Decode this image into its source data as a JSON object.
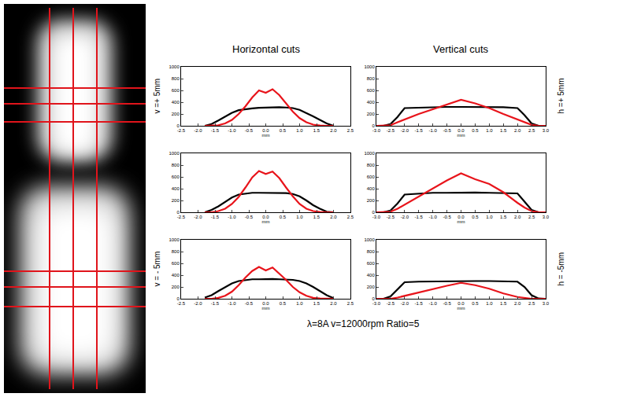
{
  "chart_data": [
    {
      "type": "line",
      "x_label": "mm",
      "xlim": [
        -2.5,
        2.5
      ],
      "xticks": [
        -2.5,
        {
          "value": -2,
          "label": "-2.0"
        },
        -1.5,
        {
          "value": -1,
          "label": "-1.0"
        },
        -0.5,
        {
          "value": 0,
          "label": "0.0"
        },
        0.5,
        {
          "value": 1,
          "label": "1.0"
        },
        1.5,
        {
          "value": 2,
          "label": "2.0"
        },
        2.5
      ],
      "ylim": [
        0,
        1000
      ],
      "yticks": [
        0,
        200,
        400,
        600,
        800,
        1000
      ],
      "grid": false,
      "x": [
        -1.8,
        -1.6,
        -1.4,
        -1.2,
        -1.0,
        -0.8,
        -0.6,
        -0.4,
        -0.2,
        0,
        0.2,
        0.4,
        0.6,
        0.8,
        1.0,
        1.2,
        1.4,
        1.6,
        1.8,
        2.0
      ],
      "series": [
        {
          "color": "#000000",
          "values": [
            0,
            30,
            90,
            160,
            220,
            265,
            285,
            295,
            305,
            310,
            315,
            315,
            310,
            300,
            270,
            220,
            160,
            100,
            40,
            0
          ]
        },
        {
          "color": "#e8141b",
          "values": [
            0,
            0,
            10,
            40,
            100,
            200,
            330,
            480,
            600,
            560,
            620,
            520,
            380,
            240,
            130,
            60,
            20,
            5,
            0,
            0
          ]
        }
      ]
    },
    {
      "type": "line",
      "x_label": "mm",
      "xlim": [
        -3,
        3
      ],
      "xticks": [
        {
          "value": -3,
          "label": "-3.0"
        },
        -2.5,
        {
          "value": -2,
          "label": "-2.0"
        },
        -1.5,
        {
          "value": -1,
          "label": "-1.0"
        },
        -0.5,
        {
          "value": 0,
          "label": "0.0"
        },
        0.5,
        {
          "value": 1,
          "label": "1.0"
        },
        1.5,
        {
          "value": 2,
          "label": "2.0"
        },
        2.5,
        {
          "value": 3,
          "label": "3.0"
        }
      ],
      "ylim": [
        0,
        1000
      ],
      "yticks": [
        0,
        200,
        400,
        600,
        800,
        1000
      ],
      "grid": false,
      "x": [
        -3,
        -2.75,
        -2.5,
        -2.25,
        -2,
        -1.5,
        -1,
        -0.5,
        0,
        0.5,
        1,
        1.5,
        2,
        2.25,
        2.5,
        2.75,
        3
      ],
      "series": [
        {
          "color": "#000000",
          "values": [
            0,
            0,
            30,
            150,
            300,
            310,
            315,
            320,
            320,
            320,
            320,
            315,
            300,
            180,
            40,
            0,
            0
          ]
        },
        {
          "color": "#e8141b",
          "values": [
            0,
            0,
            10,
            60,
            110,
            200,
            280,
            360,
            440,
            380,
            300,
            200,
            110,
            60,
            15,
            0,
            0
          ]
        }
      ]
    },
    {
      "type": "line",
      "x_label": "mm",
      "xlim": [
        -2.5,
        2.5
      ],
      "xticks": [
        -2.5,
        {
          "value": -2,
          "label": "-2.0"
        },
        -1.5,
        {
          "value": -1,
          "label": "-1.0"
        },
        -0.5,
        {
          "value": 0,
          "label": "0.0"
        },
        0.5,
        {
          "value": 1,
          "label": "1.0"
        },
        1.5,
        {
          "value": 2,
          "label": "2.0"
        },
        2.5
      ],
      "ylim": [
        0,
        1000
      ],
      "yticks": [
        0,
        200,
        400,
        600,
        800,
        1000
      ],
      "grid": false,
      "x": [
        -1.8,
        -1.6,
        -1.4,
        -1.2,
        -1.0,
        -0.8,
        -0.6,
        -0.4,
        -0.2,
        0,
        0.2,
        0.4,
        0.6,
        0.8,
        1.0,
        1.2,
        1.4,
        1.6,
        1.8,
        2.0
      ],
      "series": [
        {
          "color": "#000000",
          "values": [
            0,
            40,
            100,
            180,
            250,
            300,
            320,
            330,
            330,
            330,
            330,
            330,
            325,
            310,
            270,
            200,
            120,
            60,
            10,
            0
          ]
        },
        {
          "color": "#e8141b",
          "values": [
            0,
            0,
            20,
            60,
            140,
            260,
            420,
            590,
            700,
            650,
            690,
            580,
            420,
            270,
            140,
            60,
            20,
            5,
            0,
            0
          ]
        }
      ]
    },
    {
      "type": "line",
      "x_label": "mm",
      "xlim": [
        -3,
        3
      ],
      "xticks": [
        {
          "value": -3,
          "label": "-3.0"
        },
        -2.5,
        {
          "value": -2,
          "label": "-2.0"
        },
        -1.5,
        {
          "value": -1,
          "label": "-1.0"
        },
        -0.5,
        {
          "value": 0,
          "label": "0.0"
        },
        0.5,
        {
          "value": 1,
          "label": "1.0"
        },
        1.5,
        {
          "value": 2,
          "label": "2.0"
        },
        2.5,
        {
          "value": 3,
          "label": "3.0"
        }
      ],
      "ylim": [
        0,
        1000
      ],
      "yticks": [
        0,
        200,
        400,
        600,
        800,
        1000
      ],
      "grid": false,
      "x": [
        -3,
        -2.75,
        -2.5,
        -2.25,
        -2,
        -1.5,
        -1,
        -0.5,
        0,
        0.5,
        1,
        1.5,
        2,
        2.25,
        2.5,
        2.75,
        3
      ],
      "series": [
        {
          "color": "#000000",
          "values": [
            0,
            0,
            30,
            150,
            300,
            320,
            330,
            330,
            335,
            335,
            330,
            330,
            320,
            180,
            40,
            0,
            0
          ]
        },
        {
          "color": "#e8141b",
          "values": [
            0,
            0,
            10,
            60,
            130,
            260,
            400,
            540,
            660,
            560,
            480,
            340,
            160,
            80,
            20,
            0,
            0
          ]
        }
      ]
    },
    {
      "type": "line",
      "x_label": "mm",
      "xlim": [
        -2.5,
        2.5
      ],
      "xticks": [
        -2.5,
        {
          "value": -2,
          "label": "-2.0"
        },
        -1.5,
        {
          "value": -1,
          "label": "-1.0"
        },
        -0.5,
        {
          "value": 0,
          "label": "0.0"
        },
        0.5,
        {
          "value": 1,
          "label": "1.0"
        },
        1.5,
        {
          "value": 2,
          "label": "2.0"
        },
        2.5
      ],
      "ylim": [
        0,
        1000
      ],
      "yticks": [
        0,
        200,
        400,
        600,
        800,
        1000
      ],
      "grid": false,
      "x": [
        -1.8,
        -1.6,
        -1.4,
        -1.2,
        -1.0,
        -0.8,
        -0.6,
        -0.4,
        -0.2,
        0,
        0.2,
        0.4,
        0.6,
        0.8,
        1.0,
        1.2,
        1.4,
        1.6,
        1.8,
        2.0
      ],
      "series": [
        {
          "color": "#000000",
          "values": [
            20,
            60,
            130,
            200,
            260,
            300,
            320,
            330,
            330,
            335,
            335,
            330,
            325,
            320,
            300,
            260,
            200,
            130,
            60,
            10
          ]
        },
        {
          "color": "#e8141b",
          "values": [
            0,
            0,
            15,
            50,
            120,
            230,
            360,
            470,
            540,
            480,
            530,
            430,
            320,
            200,
            110,
            50,
            15,
            5,
            0,
            0
          ]
        }
      ]
    },
    {
      "type": "line",
      "x_label": "mm",
      "xlim": [
        -3,
        3
      ],
      "xticks": [
        {
          "value": -3,
          "label": "-3.0"
        },
        -2.5,
        {
          "value": -2,
          "label": "-2.0"
        },
        -1.5,
        {
          "value": -1,
          "label": "-1.0"
        },
        -0.5,
        {
          "value": 0,
          "label": "0.0"
        },
        0.5,
        {
          "value": 1,
          "label": "1.0"
        },
        1.5,
        {
          "value": 2,
          "label": "2.0"
        },
        2.5,
        {
          "value": 3,
          "label": "3.0"
        }
      ],
      "ylim": [
        0,
        1000
      ],
      "yticks": [
        0,
        200,
        400,
        600,
        800,
        1000
      ],
      "grid": false,
      "x": [
        -3,
        -2.75,
        -2.5,
        -2.25,
        -2,
        -1.5,
        -1,
        -0.5,
        0,
        0.5,
        1,
        1.5,
        2,
        2.25,
        2.5,
        2.75,
        3
      ],
      "series": [
        {
          "color": "#000000",
          "values": [
            0,
            0,
            40,
            160,
            280,
            290,
            295,
            300,
            300,
            300,
            300,
            295,
            290,
            200,
            60,
            5,
            0
          ]
        },
        {
          "color": "#e8141b",
          "values": [
            0,
            0,
            0,
            20,
            50,
            110,
            160,
            220,
            270,
            230,
            170,
            90,
            30,
            10,
            0,
            0,
            0
          ]
        }
      ]
    }
  ],
  "column_titles": [
    "Horizontal cuts",
    "Vertical cuts"
  ],
  "row_labels_left": [
    "v =+ 5mm",
    null,
    "v = - 5mm"
  ],
  "row_labels_right": [
    "h =+ 5mm",
    null,
    "h = -5mm"
  ],
  "caption": "λ=8A v=12000rpm Ratio=5"
}
